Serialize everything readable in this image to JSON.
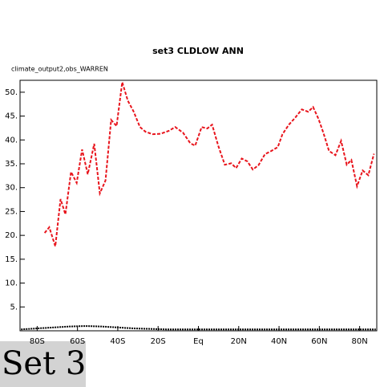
{
  "chart_data": {
    "type": "line",
    "title": "set3 CLDLOW ANN",
    "subtitle": "climate_output2,obs_WARREN",
    "xlim": [
      -88.5,
      88.5
    ],
    "ylim": [
      0,
      52.5
    ],
    "xticks": [
      {
        "value": -80,
        "label": "80S"
      },
      {
        "value": -60,
        "label": "60S"
      },
      {
        "value": -40,
        "label": "40S"
      },
      {
        "value": -20,
        "label": "20S"
      },
      {
        "value": 0,
        "label": "Eq"
      },
      {
        "value": 20,
        "label": "20N"
      },
      {
        "value": 40,
        "label": "40N"
      },
      {
        "value": 60,
        "label": "60N"
      },
      {
        "value": 80,
        "label": "80N"
      }
    ],
    "yticks": [
      {
        "value": 5,
        "label": "5."
      },
      {
        "value": 10,
        "label": "10."
      },
      {
        "value": 15,
        "label": "15."
      },
      {
        "value": 20,
        "label": "20."
      },
      {
        "value": 25,
        "label": "25."
      },
      {
        "value": 30,
        "label": "30."
      },
      {
        "value": 35,
        "label": "35."
      },
      {
        "value": 40,
        "label": "40."
      },
      {
        "value": 45,
        "label": "45."
      },
      {
        "value": 50,
        "label": "50."
      }
    ],
    "series": [
      {
        "color": "#e8141c",
        "dash": "4 2",
        "x": [
          -76.3,
          -74,
          -71,
          -68.4,
          -66,
          -63.2,
          -60.4,
          -57.7,
          -54.9,
          -51.7,
          -48.9,
          -46.1,
          -43.3,
          -40.6,
          -37.8,
          -35,
          -32.2,
          -29,
          -26.2,
          -22.7,
          -18.7,
          -14.7,
          -11.5,
          -7.6,
          -4,
          -1.6,
          1.6,
          4.4,
          6.8,
          9.9,
          13.1,
          16.3,
          18.7,
          21.5,
          24.3,
          27,
          29.8,
          33,
          36.2,
          39.4,
          41.7,
          44.9,
          48.1,
          51.3,
          54.5,
          56.9,
          59.6,
          62,
          64.8,
          68,
          70.8,
          73.6,
          75.9,
          78.7,
          81.5,
          84.3,
          87.1
        ],
        "values": [
          20.5,
          21.7,
          17.7,
          27.6,
          24.4,
          33.3,
          31,
          38,
          32.8,
          39.2,
          28.8,
          31.5,
          44.2,
          42.9,
          52.1,
          48.2,
          46,
          42.7,
          41.7,
          41.2,
          41.3,
          41.9,
          42.7,
          41.5,
          39.3,
          38.8,
          42.7,
          42.4,
          43.2,
          38.7,
          34.8,
          35.1,
          34.1,
          36.1,
          35.5,
          33.8,
          34.7,
          37,
          37.7,
          38.5,
          41.2,
          43.2,
          44.7,
          46.4,
          45.9,
          46.9,
          44.4,
          41.5,
          37.7,
          36.8,
          39.8,
          34.8,
          35.8,
          30.3,
          33.6,
          32.6,
          37.1
        ]
      },
      {
        "color": "#000000",
        "dash": "2 1",
        "x": [
          -88,
          -80,
          -72,
          -64,
          -56,
          -48,
          -40,
          -32,
          -24,
          -16,
          -8,
          0,
          8,
          16,
          24,
          32,
          40,
          48,
          56,
          64,
          72,
          80,
          88
        ],
        "values": [
          0.3,
          0.5,
          0.7,
          0.9,
          1.0,
          0.9,
          0.7,
          0.5,
          0.4,
          0.3,
          0.3,
          0.3,
          0.3,
          0.3,
          0.3,
          0.3,
          0.3,
          0.3,
          0.3,
          0.3,
          0.3,
          0.3,
          0.3
        ]
      }
    ]
  },
  "caption": "Set 3"
}
